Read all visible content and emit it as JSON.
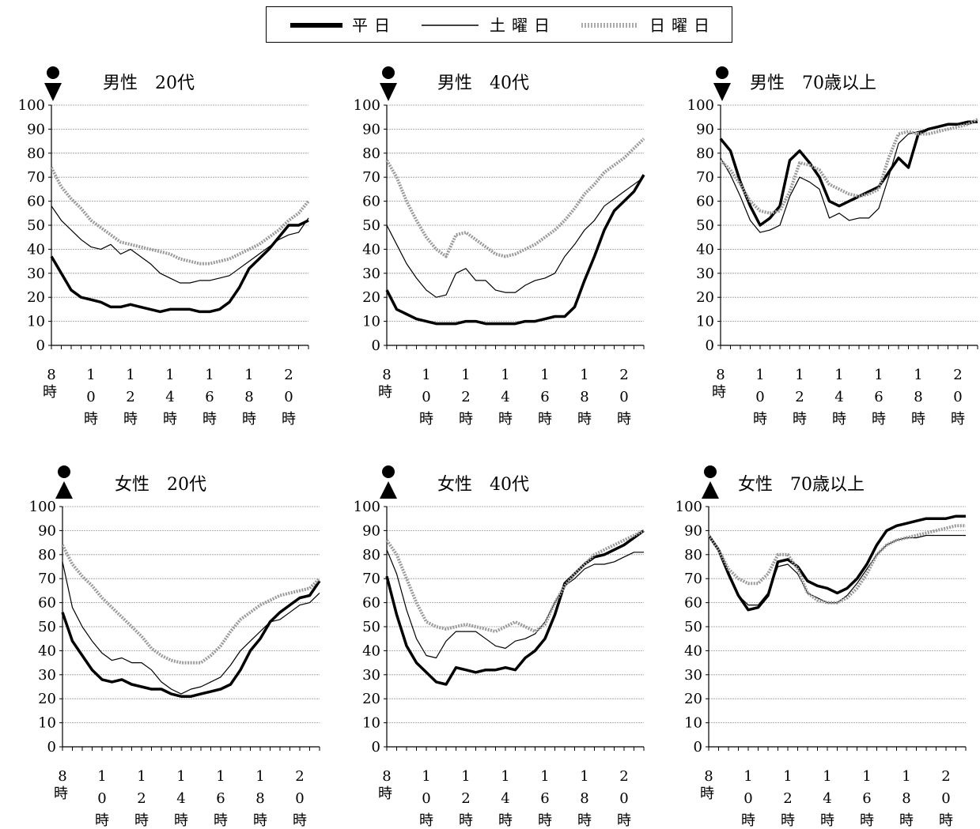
{
  "legend": {
    "entries": [
      {
        "label": "平日",
        "style": "thick"
      },
      {
        "label": "土曜日",
        "style": "thin"
      },
      {
        "label": "日曜日",
        "style": "dotted"
      }
    ]
  },
  "axis": {
    "y_ticks": [
      "100",
      "90",
      "80",
      "70",
      "60",
      "50",
      "40",
      "30",
      "20",
      "10",
      "0"
    ],
    "x_ticks": [
      {
        "lines": [
          "8",
          "時"
        ]
      },
      {
        "lines": [
          "1",
          "0",
          "時"
        ]
      },
      {
        "lines": [
          "1",
          "2",
          "時"
        ]
      },
      {
        "lines": [
          "1",
          "4",
          "時"
        ]
      },
      {
        "lines": [
          "1",
          "6",
          "時"
        ]
      },
      {
        "lines": [
          "1",
          "8",
          "時"
        ]
      },
      {
        "lines": [
          "2",
          "0",
          "時"
        ]
      }
    ]
  },
  "chart_data": [
    {
      "type": "line",
      "title": "男性　20代",
      "icon": "male-icon",
      "x_hours": [
        8,
        8.5,
        9,
        9.5,
        10,
        10.5,
        11,
        11.5,
        12,
        12.5,
        13,
        13.5,
        14,
        14.5,
        15,
        15.5,
        16,
        16.5,
        17,
        17.5,
        18,
        18.5,
        19,
        19.5,
        20,
        20.5,
        21
      ],
      "ylim": [
        0,
        100
      ],
      "grid": true,
      "series": [
        {
          "name": "平日",
          "values": [
            37,
            30,
            23,
            20,
            19,
            18,
            16,
            16,
            17,
            16,
            15,
            14,
            15,
            15,
            15,
            14,
            14,
            15,
            18,
            24,
            32,
            36,
            40,
            45,
            50,
            50,
            52
          ]
        },
        {
          "name": "土曜日",
          "values": [
            58,
            52,
            48,
            44,
            41,
            40,
            42,
            38,
            40,
            37,
            34,
            30,
            28,
            26,
            26,
            27,
            27,
            28,
            29,
            32,
            35,
            38,
            41,
            44,
            46,
            47,
            53
          ]
        },
        {
          "name": "日曜日",
          "values": [
            74,
            66,
            61,
            57,
            52,
            49,
            46,
            43,
            42,
            41,
            40,
            39,
            38,
            36,
            35,
            34,
            34,
            35,
            36,
            38,
            40,
            42,
            45,
            48,
            52,
            55,
            60
          ]
        }
      ]
    },
    {
      "type": "line",
      "title": "男性　40代",
      "icon": "male-icon",
      "x_hours": [
        8,
        8.5,
        9,
        9.5,
        10,
        10.5,
        11,
        11.5,
        12,
        12.5,
        13,
        13.5,
        14,
        14.5,
        15,
        15.5,
        16,
        16.5,
        17,
        17.5,
        18,
        18.5,
        19,
        19.5,
        20,
        20.5,
        21
      ],
      "ylim": [
        0,
        100
      ],
      "grid": true,
      "series": [
        {
          "name": "平日",
          "values": [
            23,
            15,
            13,
            11,
            10,
            9,
            9,
            9,
            10,
            10,
            9,
            9,
            9,
            9,
            10,
            10,
            11,
            12,
            12,
            16,
            27,
            37,
            48,
            56,
            60,
            64,
            71
          ]
        },
        {
          "name": "土曜日",
          "values": [
            50,
            42,
            34,
            28,
            23,
            20,
            21,
            30,
            32,
            27,
            27,
            23,
            22,
            22,
            25,
            27,
            28,
            30,
            37,
            42,
            48,
            52,
            58,
            61,
            64,
            67,
            70
          ]
        },
        {
          "name": "日曜日",
          "values": [
            77,
            70,
            60,
            52,
            45,
            40,
            37,
            46,
            47,
            44,
            41,
            38,
            37,
            38,
            40,
            42,
            45,
            48,
            52,
            57,
            63,
            67,
            72,
            75,
            78,
            82,
            86
          ]
        }
      ]
    },
    {
      "type": "line",
      "title": "男性　70歳以上",
      "icon": "male-icon",
      "x_hours": [
        8,
        8.5,
        9,
        9.5,
        10,
        10.5,
        11,
        11.5,
        12,
        12.5,
        13,
        13.5,
        14,
        14.5,
        15,
        15.5,
        16,
        16.5,
        17,
        17.5,
        18,
        18.5,
        19,
        19.5,
        20,
        20.5,
        21
      ],
      "ylim": [
        0,
        100
      ],
      "grid": true,
      "series": [
        {
          "name": "平日",
          "values": [
            86,
            81,
            68,
            58,
            50,
            53,
            58,
            77,
            81,
            76,
            70,
            60,
            58,
            60,
            62,
            64,
            66,
            72,
            78,
            74,
            88,
            90,
            91,
            92,
            92,
            93,
            93
          ]
        },
        {
          "name": "土曜日",
          "values": [
            78,
            71,
            62,
            52,
            47,
            48,
            50,
            62,
            70,
            68,
            65,
            53,
            55,
            52,
            53,
            53,
            57,
            70,
            84,
            88,
            89,
            90,
            91,
            92,
            92,
            92,
            93
          ]
        },
        {
          "name": "日曜日",
          "values": [
            77,
            73,
            67,
            60,
            56,
            55,
            56,
            64,
            76,
            75,
            73,
            67,
            65,
            63,
            62,
            63,
            65,
            78,
            88,
            89,
            88,
            88,
            89,
            90,
            91,
            92,
            94
          ]
        }
      ]
    },
    {
      "type": "line",
      "title": "女性　20代",
      "icon": "female-icon",
      "x_hours": [
        8,
        8.5,
        9,
        9.5,
        10,
        10.5,
        11,
        11.5,
        12,
        12.5,
        13,
        13.5,
        14,
        14.5,
        15,
        15.5,
        16,
        16.5,
        17,
        17.5,
        18,
        18.5,
        19,
        19.5,
        20,
        20.5,
        21
      ],
      "ylim": [
        0,
        100
      ],
      "grid": true,
      "series": [
        {
          "name": "平日",
          "values": [
            56,
            44,
            38,
            32,
            28,
            27,
            28,
            26,
            25,
            24,
            24,
            22,
            21,
            21,
            22,
            23,
            24,
            26,
            32,
            40,
            45,
            52,
            56,
            59,
            62,
            63,
            69
          ]
        },
        {
          "name": "土曜日",
          "values": [
            77,
            58,
            50,
            44,
            39,
            36,
            37,
            35,
            35,
            32,
            27,
            24,
            22,
            24,
            25,
            27,
            29,
            34,
            40,
            44,
            48,
            52,
            53,
            56,
            59,
            60,
            64
          ]
        },
        {
          "name": "日曜日",
          "values": [
            84,
            76,
            71,
            67,
            62,
            58,
            54,
            50,
            46,
            41,
            38,
            36,
            35,
            35,
            35,
            38,
            42,
            48,
            53,
            56,
            59,
            61,
            63,
            64,
            65,
            66,
            70
          ]
        }
      ]
    },
    {
      "type": "line",
      "title": "女性　40代",
      "icon": "female-icon",
      "x_hours": [
        8,
        8.5,
        9,
        9.5,
        10,
        10.5,
        11,
        11.5,
        12,
        12.5,
        13,
        13.5,
        14,
        14.5,
        15,
        15.5,
        16,
        16.5,
        17,
        17.5,
        18,
        18.5,
        19,
        19.5,
        20,
        20.5,
        21
      ],
      "ylim": [
        0,
        100
      ],
      "grid": true,
      "series": [
        {
          "name": "平日",
          "values": [
            71,
            55,
            42,
            35,
            31,
            27,
            26,
            33,
            32,
            31,
            32,
            32,
            33,
            32,
            37,
            40,
            45,
            55,
            68,
            72,
            76,
            79,
            80,
            82,
            84,
            87,
            90
          ]
        },
        {
          "name": "土曜日",
          "values": [
            82,
            72,
            57,
            45,
            38,
            37,
            44,
            48,
            48,
            48,
            45,
            42,
            41,
            44,
            45,
            47,
            52,
            60,
            67,
            70,
            74,
            76,
            76,
            77,
            79,
            81,
            81
          ]
        },
        {
          "name": "日曜日",
          "values": [
            86,
            80,
            70,
            60,
            52,
            50,
            49,
            50,
            51,
            50,
            49,
            48,
            50,
            52,
            50,
            48,
            51,
            60,
            67,
            72,
            76,
            80,
            82,
            84,
            86,
            88,
            90
          ]
        }
      ]
    },
    {
      "type": "line",
      "title": "女性　70歳以上",
      "icon": "female-icon",
      "x_hours": [
        8,
        8.5,
        9,
        9.5,
        10,
        10.5,
        11,
        11.5,
        12,
        12.5,
        13,
        13.5,
        14,
        14.5,
        15,
        15.5,
        16,
        16.5,
        17,
        17.5,
        18,
        18.5,
        19,
        19.5,
        20,
        20.5,
        21
      ],
      "ylim": [
        0,
        100
      ],
      "grid": true,
      "series": [
        {
          "name": "平日",
          "values": [
            88,
            82,
            72,
            63,
            57,
            58,
            63,
            77,
            78,
            75,
            69,
            67,
            66,
            64,
            66,
            70,
            76,
            84,
            90,
            92,
            93,
            94,
            95,
            95,
            95,
            96,
            96
          ]
        },
        {
          "name": "土曜日",
          "values": [
            88,
            82,
            72,
            63,
            59,
            59,
            64,
            75,
            76,
            72,
            64,
            62,
            60,
            60,
            63,
            68,
            74,
            80,
            84,
            86,
            87,
            87,
            88,
            88,
            88,
            88,
            88
          ]
        },
        {
          "name": "日曜日",
          "values": [
            88,
            82,
            74,
            70,
            68,
            68,
            72,
            80,
            80,
            74,
            64,
            61,
            60,
            60,
            62,
            66,
            72,
            80,
            84,
            86,
            87,
            88,
            89,
            90,
            91,
            92,
            92
          ]
        }
      ]
    }
  ]
}
